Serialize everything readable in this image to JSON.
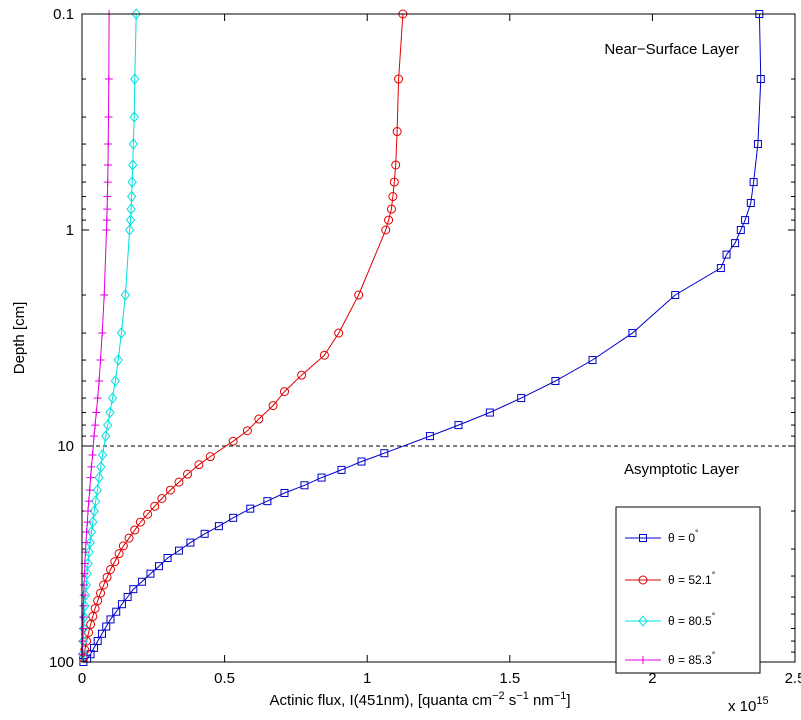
{
  "chart_data": {
    "type": "line",
    "xlabel": "Actinic flux, I(451nm), [quanta cm^-2 s^-1 nm^-1]",
    "xlabel_parts": {
      "p1": "Actinic flux, I(451nm), [quanta cm",
      "e1": "−2",
      "p2": " s",
      "e2": "−1",
      "p3": " nm",
      "e3": "−1",
      "p4": "]"
    },
    "ylabel": "Depth [cm]",
    "xlim": [
      0,
      2.5
    ],
    "ylim": [
      0.1,
      100
    ],
    "yscale": "log",
    "y_reversed": true,
    "x_multiplier": {
      "base": "x 10",
      "exp": "15"
    },
    "x_ticks": [
      "0",
      "0.5",
      "1",
      "1.5",
      "2",
      "2.5"
    ],
    "x_tick_values": [
      0,
      0.5,
      1,
      1.5,
      2,
      2.5
    ],
    "y_ticks": [
      "0.1",
      "1",
      "10",
      "100"
    ],
    "y_tick_values": [
      0.1,
      1,
      10,
      100
    ],
    "reference_line": {
      "y": 10,
      "style": "dashed"
    },
    "annotations": {
      "top": "Near−Surface Layer",
      "bottom": "Asymptotic Layer"
    },
    "legend_position": "bottom-right",
    "series": [
      {
        "name": "θ = 0",
        "name_sup": "°",
        "color": "#0000cc",
        "marker": "square",
        "points": [
          [
            2.375,
            0.1
          ],
          [
            2.38,
            0.2
          ],
          [
            2.37,
            0.4
          ],
          [
            2.355,
            0.6
          ],
          [
            2.345,
            0.75
          ],
          [
            2.325,
            0.9
          ],
          [
            2.31,
            1.0
          ],
          [
            2.29,
            1.15
          ],
          [
            2.26,
            1.3
          ],
          [
            2.24,
            1.5
          ],
          [
            2.08,
            2.0
          ],
          [
            1.93,
            3.0
          ],
          [
            1.79,
            4.0
          ],
          [
            1.66,
            5.0
          ],
          [
            1.54,
            6.0
          ],
          [
            1.43,
            7.0
          ],
          [
            1.32,
            8.0
          ],
          [
            1.22,
            9.0
          ],
          [
            1.06,
            10.8
          ],
          [
            0.98,
            11.8
          ],
          [
            0.91,
            12.9
          ],
          [
            0.84,
            14.0
          ],
          [
            0.78,
            15.2
          ],
          [
            0.71,
            16.5
          ],
          [
            0.65,
            18.0
          ],
          [
            0.59,
            19.5
          ],
          [
            0.53,
            21.5
          ],
          [
            0.48,
            23.5
          ],
          [
            0.43,
            25.5
          ],
          [
            0.38,
            28.0
          ],
          [
            0.34,
            30.5
          ],
          [
            0.3,
            33.0
          ],
          [
            0.27,
            36.0
          ],
          [
            0.24,
            39.0
          ],
          [
            0.21,
            42.5
          ],
          [
            0.18,
            46.0
          ],
          [
            0.16,
            50.0
          ],
          [
            0.14,
            54.0
          ],
          [
            0.12,
            58.5
          ],
          [
            0.1,
            63.5
          ],
          [
            0.085,
            68.5
          ],
          [
            0.07,
            74.0
          ],
          [
            0.055,
            80.0
          ],
          [
            0.042,
            86.0
          ],
          [
            0.03,
            92.0
          ],
          [
            0.018,
            96.5
          ],
          [
            0.005,
            100.0
          ]
        ]
      },
      {
        "name": "θ = 52.1",
        "name_sup": "°",
        "color": "#e00000",
        "marker": "circle",
        "points": [
          [
            1.125,
            0.1
          ],
          [
            1.11,
            0.2
          ],
          [
            1.105,
            0.35
          ],
          [
            1.1,
            0.5
          ],
          [
            1.095,
            0.6
          ],
          [
            1.09,
            0.7
          ],
          [
            1.085,
            0.8
          ],
          [
            1.075,
            0.9
          ],
          [
            1.065,
            1.0
          ],
          [
            0.97,
            2.0
          ],
          [
            0.9,
            3.0
          ],
          [
            0.85,
            3.8
          ],
          [
            0.77,
            4.7
          ],
          [
            0.71,
            5.6
          ],
          [
            0.67,
            6.5
          ],
          [
            0.62,
            7.5
          ],
          [
            0.58,
            8.5
          ],
          [
            0.53,
            9.5
          ],
          [
            0.45,
            11.2
          ],
          [
            0.41,
            12.2
          ],
          [
            0.37,
            13.5
          ],
          [
            0.34,
            14.7
          ],
          [
            0.31,
            16.0
          ],
          [
            0.28,
            17.5
          ],
          [
            0.255,
            19.0
          ],
          [
            0.23,
            20.7
          ],
          [
            0.205,
            22.5
          ],
          [
            0.185,
            24.5
          ],
          [
            0.165,
            26.7
          ],
          [
            0.145,
            29.0
          ],
          [
            0.13,
            31.5
          ],
          [
            0.115,
            34.3
          ],
          [
            0.1,
            37.3
          ],
          [
            0.088,
            40.5
          ],
          [
            0.076,
            44.0
          ],
          [
            0.065,
            48.0
          ],
          [
            0.055,
            52.0
          ],
          [
            0.046,
            56.5
          ],
          [
            0.038,
            61.5
          ],
          [
            0.03,
            67.0
          ],
          [
            0.023,
            73.0
          ],
          [
            0.016,
            80.0
          ],
          [
            0.01,
            88.0
          ],
          [
            0.005,
            96.0
          ]
        ]
      },
      {
        "name": "θ = 80.5",
        "name_sup": "°",
        "color": "#00e0e0",
        "marker": "diamond",
        "points": [
          [
            0.19,
            0.1
          ],
          [
            0.185,
            0.2
          ],
          [
            0.183,
            0.3
          ],
          [
            0.18,
            0.4
          ],
          [
            0.178,
            0.5
          ],
          [
            0.176,
            0.6
          ],
          [
            0.174,
            0.7
          ],
          [
            0.172,
            0.8
          ],
          [
            0.17,
            0.9
          ],
          [
            0.167,
            1.0
          ],
          [
            0.152,
            2.0
          ],
          [
            0.138,
            3.0
          ],
          [
            0.127,
            4.0
          ],
          [
            0.117,
            5.0
          ],
          [
            0.107,
            6.0
          ],
          [
            0.098,
            7.0
          ],
          [
            0.09,
            8.0
          ],
          [
            0.083,
            9.0
          ],
          [
            0.072,
            11.0
          ],
          [
            0.066,
            12.5
          ],
          [
            0.06,
            14.0
          ],
          [
            0.054,
            16.0
          ],
          [
            0.048,
            18.0
          ],
          [
            0.043,
            20.0
          ],
          [
            0.038,
            22.5
          ],
          [
            0.033,
            25.0
          ],
          [
            0.029,
            28.0
          ],
          [
            0.025,
            31.0
          ],
          [
            0.021,
            35.0
          ],
          [
            0.018,
            39.0
          ],
          [
            0.015,
            44.0
          ],
          [
            0.012,
            49.0
          ],
          [
            0.01,
            55.0
          ],
          [
            0.008,
            62.0
          ],
          [
            0.006,
            70.0
          ],
          [
            0.004,
            80.0
          ],
          [
            0.002,
            92.0
          ]
        ]
      },
      {
        "name": "θ = 85.3",
        "name_sup": "°",
        "color": "#e000e0",
        "marker": "plus",
        "points": [
          [
            0.095,
            0.1
          ],
          [
            0.094,
            0.2
          ],
          [
            0.093,
            0.3
          ],
          [
            0.092,
            0.4
          ],
          [
            0.091,
            0.5
          ],
          [
            0.09,
            0.6
          ],
          [
            0.089,
            0.7
          ],
          [
            0.088,
            0.8
          ],
          [
            0.087,
            0.9
          ],
          [
            0.086,
            1.0
          ],
          [
            0.078,
            2.0
          ],
          [
            0.071,
            3.0
          ],
          [
            0.065,
            4.0
          ],
          [
            0.06,
            5.0
          ],
          [
            0.055,
            6.0
          ],
          [
            0.05,
            7.0
          ],
          [
            0.046,
            8.0
          ],
          [
            0.042,
            9.0
          ],
          [
            0.037,
            11.0
          ],
          [
            0.033,
            12.5
          ],
          [
            0.03,
            14.0
          ],
          [
            0.027,
            16.0
          ],
          [
            0.024,
            18.0
          ],
          [
            0.021,
            20.0
          ],
          [
            0.019,
            22.5
          ],
          [
            0.016,
            25.0
          ],
          [
            0.014,
            28.0
          ],
          [
            0.012,
            31.0
          ],
          [
            0.01,
            35.0
          ],
          [
            0.009,
            39.0
          ],
          [
            0.007,
            44.0
          ],
          [
            0.006,
            49.0
          ],
          [
            0.005,
            55.0
          ],
          [
            0.004,
            62.0
          ],
          [
            0.003,
            70.0
          ],
          [
            0.002,
            80.0
          ],
          [
            0.001,
            92.0
          ]
        ]
      }
    ]
  }
}
